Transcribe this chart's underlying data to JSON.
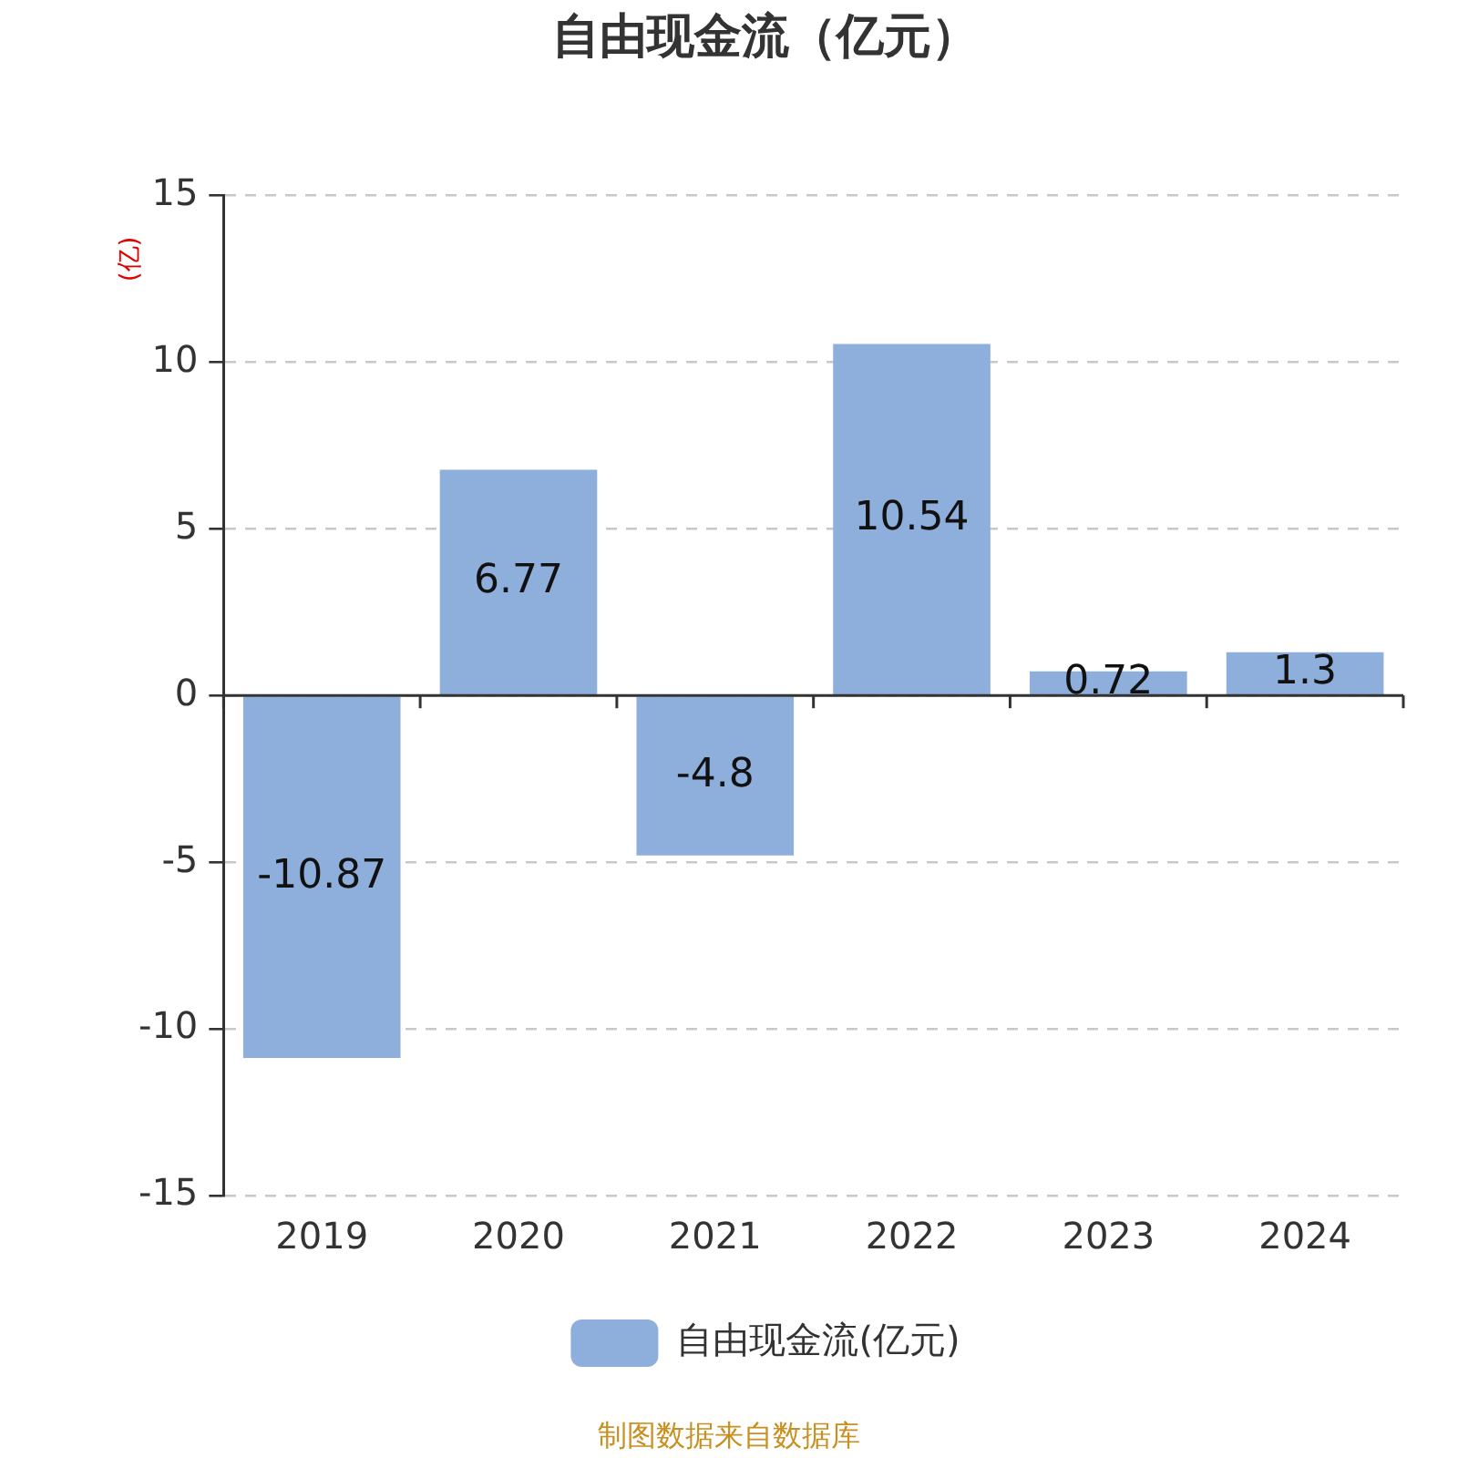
{
  "chart_data": {
    "type": "bar",
    "title": "自由现金流（亿元）",
    "ylabel": "(亿)",
    "categories": [
      "2019",
      "2020",
      "2021",
      "2022",
      "2023",
      "2024"
    ],
    "series": [
      {
        "name": "自由现金流(亿元)",
        "color": "#8eaedb",
        "values": [
          -10.87,
          6.77,
          -4.8,
          10.54,
          0.72,
          1.3
        ]
      }
    ],
    "ylim": [
      -15,
      15
    ],
    "yticks": [
      -15,
      -10,
      -5,
      0,
      5,
      10,
      15
    ],
    "grid": "y",
    "legend": "bottom",
    "data_labels": true,
    "annotations": [
      "制图数据来自数据库"
    ]
  }
}
